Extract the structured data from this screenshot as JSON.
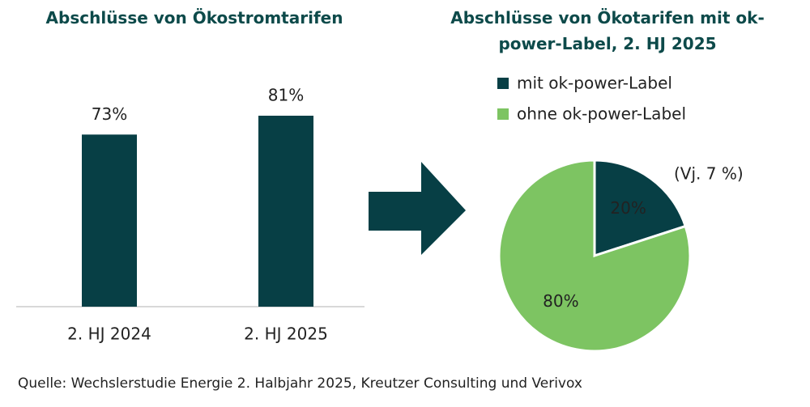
{
  "chart_data": [
    {
      "type": "bar",
      "title": "Abschlüsse von Ökostromtarifen",
      "categories": [
        "2. HJ 2024",
        "2. HJ 2025"
      ],
      "values": [
        73,
        81
      ],
      "value_labels": [
        "73%",
        "81%"
      ],
      "color": "#073f45"
    },
    {
      "type": "pie",
      "title": "Abschlüsse von Ökotarifen mit ok-power-Label, 2. HJ 2025",
      "categories": [
        "mit ok-power-Label",
        "ohne ok-power-Label"
      ],
      "values": [
        20,
        80
      ],
      "value_labels": [
        "20%",
        "80%"
      ],
      "colors": [
        "#073f45",
        "#7dc462"
      ],
      "annotation": "(Vj. 7 %)"
    }
  ],
  "source": "Quelle: Wechslerstudie Energie 2. Halbjahr 2025, Kreutzer Consulting und Verivox"
}
